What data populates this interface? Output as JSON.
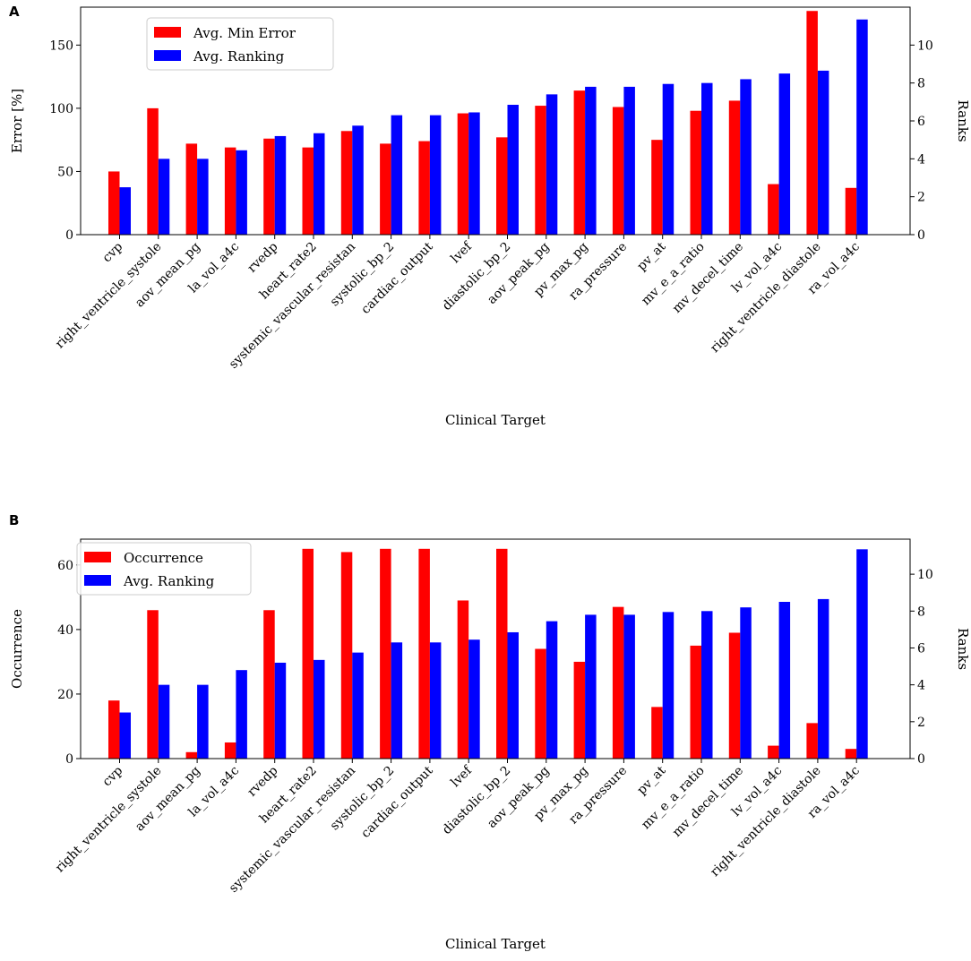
{
  "chart_data": [
    {
      "panel": "A",
      "type": "bar",
      "xlabel": "Clinical Target",
      "ylabel_left": "Error [%]",
      "ylabel_right": "Ranks",
      "ylim_left": [
        0,
        180
      ],
      "ylim_right": [
        0,
        12
      ],
      "yticks_left": [
        0,
        50,
        100,
        150
      ],
      "yticks_right": [
        0,
        2,
        4,
        6,
        8,
        10
      ],
      "legend_position": "top-left",
      "categories": [
        "cvp",
        "right_ventricle_systole",
        "aov_mean_pg",
        "la_vol_a4c",
        "rvedp",
        "heart_rate2",
        "systemic_vascular_resistan",
        "systolic_bp_2",
        "cardiac_output",
        "lvef",
        "diastolic_bp_2",
        "aov_peak_pg",
        "pv_max_pg",
        "ra_pressure",
        "pv_at",
        "mv_e_a_ratio",
        "mv_decel_time",
        "lv_vol_a4c",
        "right_ventricle_diastole",
        "ra_vol_a4c"
      ],
      "series": [
        {
          "name": "Avg. Min Error",
          "color": "#ff0000",
          "axis": "left",
          "values": [
            50,
            100,
            72,
            69,
            76,
            69,
            82,
            72,
            74,
            96,
            77,
            102,
            114,
            101,
            75,
            98,
            106,
            40,
            177,
            37
          ]
        },
        {
          "name": "Avg. Ranking",
          "color": "#0000ff",
          "axis": "right",
          "values": [
            2.5,
            4.0,
            4.0,
            4.45,
            5.2,
            5.35,
            5.75,
            6.3,
            6.3,
            6.45,
            6.85,
            7.4,
            7.8,
            7.8,
            7.95,
            8.0,
            8.2,
            8.5,
            8.65,
            11.35
          ]
        }
      ]
    },
    {
      "panel": "B",
      "type": "bar",
      "xlabel": "Clinical Target",
      "ylabel_left": "Occurrence",
      "ylabel_right": "Ranks",
      "ylim_left": [
        0,
        68
      ],
      "ylim_right": [
        0,
        11.9
      ],
      "yticks_left": [
        0,
        20,
        40,
        60
      ],
      "yticks_right": [
        0,
        2,
        4,
        6,
        8,
        10
      ],
      "legend_position": "top-left",
      "categories": [
        "cvp",
        "right_ventricle_systole",
        "aov_mean_pg",
        "la_vol_a4c",
        "rvedp",
        "heart_rate2",
        "systemic_vascular_resistan",
        "systolic_bp_2",
        "cardiac_output",
        "lvef",
        "diastolic_bp_2",
        "aov_peak_pg",
        "pv_max_pg",
        "ra_pressure",
        "pv_at",
        "mv_e_a_ratio",
        "mv_decel_time",
        "lv_vol_a4c",
        "right_ventricle_diastole",
        "ra_vol_a4c"
      ],
      "series": [
        {
          "name": "Occurrence",
          "color": "#ff0000",
          "axis": "left",
          "values": [
            18,
            46,
            2,
            5,
            46,
            65,
            64,
            65,
            65,
            49,
            65,
            34,
            30,
            47,
            16,
            35,
            39,
            4,
            11,
            3
          ]
        },
        {
          "name": "Avg. Ranking",
          "color": "#0000ff",
          "axis": "right",
          "values": [
            2.5,
            4.0,
            4.0,
            4.8,
            5.2,
            5.35,
            5.75,
            6.3,
            6.3,
            6.45,
            6.85,
            7.45,
            7.8,
            7.8,
            7.95,
            8.0,
            8.2,
            8.5,
            8.65,
            11.35
          ]
        }
      ]
    }
  ]
}
